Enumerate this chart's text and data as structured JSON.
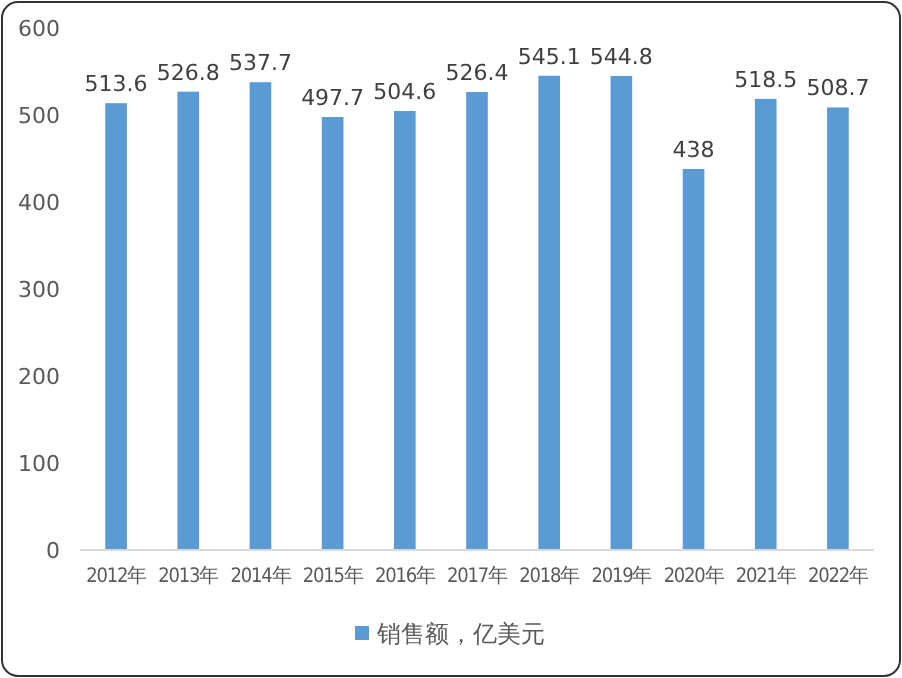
{
  "chart_data": {
    "type": "bar",
    "categories": [
      "2012年",
      "2013年",
      "2014年",
      "2015年",
      "2016年",
      "2017年",
      "2018年",
      "2019年",
      "2020年",
      "2021年",
      "2022年"
    ],
    "series": [
      {
        "name": "销售额，亿美元",
        "color": "#5b9bd5",
        "values": [
          513.6,
          526.8,
          537.7,
          497.7,
          504.6,
          526.4,
          545.1,
          544.8,
          438,
          518.5,
          508.7
        ]
      }
    ],
    "ylim": [
      0,
      600
    ],
    "yticks": [
      0,
      100,
      200,
      300,
      400,
      500,
      600
    ],
    "grid": false,
    "legend": "bottom",
    "data_labels": true
  }
}
